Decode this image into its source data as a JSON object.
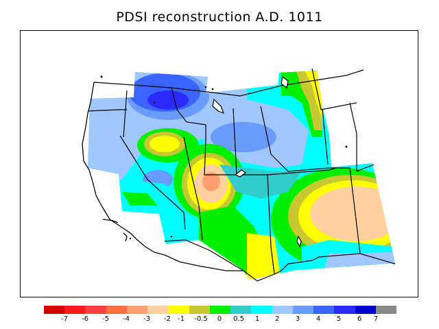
{
  "title": "PDSI reconstruction A.D. 1011",
  "colors": {
    "c_m7": "#d40000",
    "c_m6": "#ff1a1a",
    "c_m5": "#ff4040",
    "c_m4": "#ff7040",
    "c_m3": "#ffa070",
    "c_m2": "#ffd0a0",
    "c_m1": "#ffff00",
    "c_m05": "#c8c832",
    "c_0": "#00ee00",
    "c_05": "#33cccc",
    "c_1": "#00ffff",
    "c_2": "#a0c8ff",
    "c_3": "#6a9cff",
    "c_4": "#3c64ff",
    "c_5": "#2a2aff",
    "c_6": "#0000cc",
    "c_7": "#888888"
  },
  "colorbar": {
    "swatches": [
      "#d40000",
      "#ff1a1a",
      "#ff4040",
      "#ff7040",
      "#ffa070",
      "#ffd0a0",
      "#ffff00",
      "#c8c832",
      "#00ee00",
      "#33cccc",
      "#00ffff",
      "#a0c8ff",
      "#6a9cff",
      "#3c64ff",
      "#2a2aff",
      "#0000cc",
      "#888888"
    ],
    "ticks": [
      "-7",
      "-6",
      "-5",
      "-4",
      "-3",
      "-2",
      "-1",
      "-0.5",
      "0",
      "0.5",
      "1",
      "2",
      "3",
      "4",
      "5",
      "6",
      "7"
    ]
  }
}
